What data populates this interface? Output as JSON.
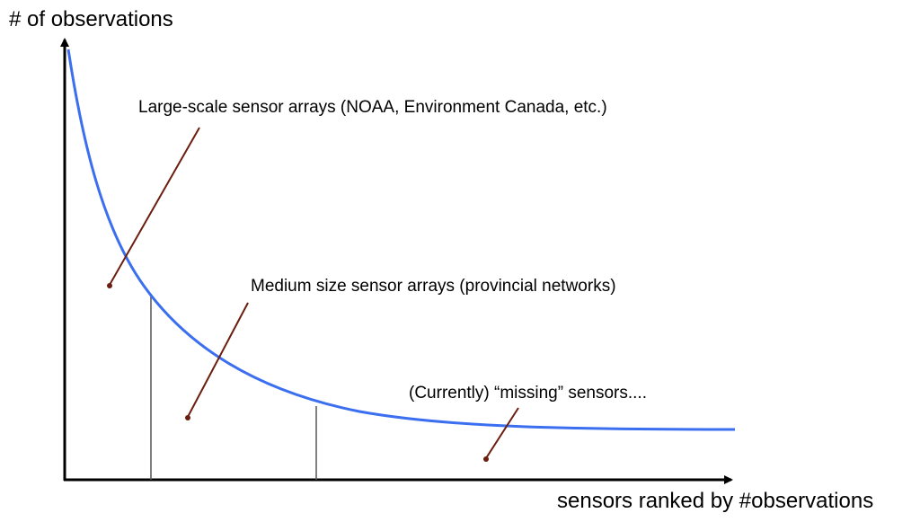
{
  "diagram": {
    "y_axis_title": "# of observations",
    "x_axis_title": "sensors ranked by #observations",
    "annotations": {
      "large": "Large-scale sensor arrays (NOAA, Environment Canada, etc.)",
      "medium": "Medium size sensor arrays (provincial networks)",
      "missing": "(Currently) “missing” sensors...."
    },
    "colors": {
      "curve": "#3b6ff0",
      "leader": "#6b1e0e",
      "divider": "#555555",
      "axis": "#000000"
    }
  }
}
